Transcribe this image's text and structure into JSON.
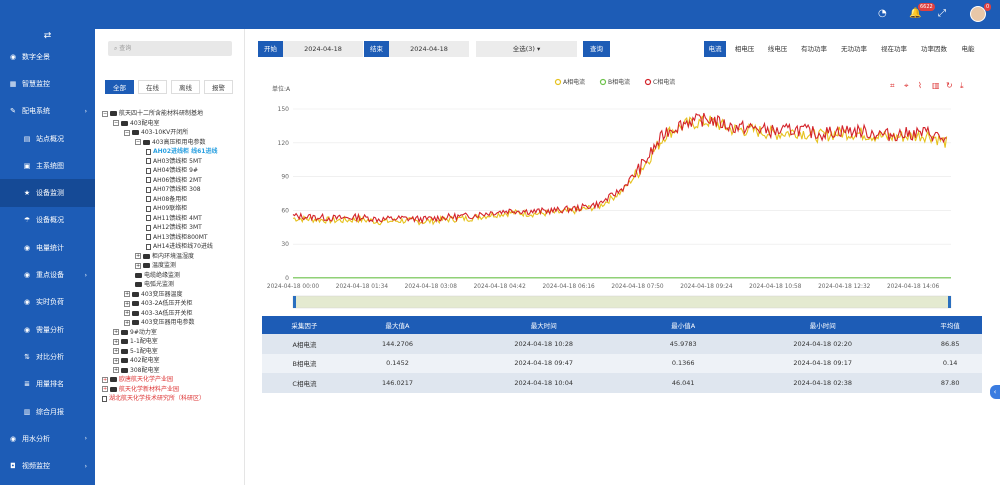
{
  "sidebar": {
    "toggle_icon": "⇄",
    "items": [
      {
        "label": "数字全景",
        "icon": "circle-icon",
        "sub": false,
        "arrow": ""
      },
      {
        "label": "智慧监控",
        "icon": "grid-icon",
        "sub": false,
        "arrow": ""
      },
      {
        "label": "配电系统",
        "icon": "wrench-icon",
        "sub": false,
        "arrow": "›"
      },
      {
        "label": "站点概况",
        "icon": "table-icon",
        "sub": true,
        "arrow": ""
      },
      {
        "label": "主系统图",
        "icon": "image-icon",
        "sub": true,
        "arrow": ""
      },
      {
        "label": "设备监测",
        "icon": "star-icon",
        "sub": true,
        "arrow": "",
        "active": true
      },
      {
        "label": "设备概况",
        "icon": "umbrella-icon",
        "sub": true,
        "arrow": ""
      },
      {
        "label": "电量统计",
        "icon": "circle-icon",
        "sub": true,
        "arrow": ""
      },
      {
        "label": "重点设备",
        "icon": "circle-icon",
        "sub": true,
        "arrow": "›"
      },
      {
        "label": "实时负荷",
        "icon": "circle-icon",
        "sub": true,
        "arrow": ""
      },
      {
        "label": "需量分析",
        "icon": "circle-icon",
        "sub": true,
        "arrow": ""
      },
      {
        "label": "对比分析",
        "icon": "compare-icon",
        "sub": true,
        "arrow": ""
      },
      {
        "label": "用量排名",
        "icon": "list-icon",
        "sub": true,
        "arrow": ""
      },
      {
        "label": "综合月报",
        "icon": "report-icon",
        "sub": true,
        "arrow": ""
      },
      {
        "label": "用水分析",
        "icon": "circle-icon",
        "sub": false,
        "arrow": "›"
      },
      {
        "label": "视频监控",
        "icon": "camera-icon",
        "sub": false,
        "arrow": "›"
      }
    ]
  },
  "topbar": {
    "alarm_count": "6622",
    "user_badge": "0"
  },
  "left": {
    "search_placeholder": "查询",
    "filters": [
      "全部",
      "在线",
      "离线",
      "报警"
    ],
    "tree": [
      {
        "d": 0,
        "t": "bx",
        "s": "−",
        "label": "航天四十二所含能材料研制基地"
      },
      {
        "d": 1,
        "t": "bx",
        "s": "−",
        "label": "403配电室"
      },
      {
        "d": 2,
        "t": "bx",
        "s": "−",
        "label": "403-10KV开闭所"
      },
      {
        "d": 3,
        "t": "bx",
        "s": "−",
        "label": "403高压柜用电参数"
      },
      {
        "d": 4,
        "t": "fl",
        "label": "AH02进线柜 线61进线",
        "hl": true
      },
      {
        "d": 4,
        "t": "fl",
        "label": "AH03馈线柜 5MT"
      },
      {
        "d": 4,
        "t": "fl",
        "label": "AH04馈线柜 9#"
      },
      {
        "d": 4,
        "t": "fl",
        "label": "AH06馈线柜 2MT"
      },
      {
        "d": 4,
        "t": "fl",
        "label": "AH07馈线柜 308"
      },
      {
        "d": 4,
        "t": "fl",
        "label": "AH08备用柜"
      },
      {
        "d": 4,
        "t": "fl",
        "label": "AH09联络柜"
      },
      {
        "d": 4,
        "t": "fl",
        "label": "AH11馈线柜 4MT"
      },
      {
        "d": 4,
        "t": "fl",
        "label": "AH12馈线柜 3MT"
      },
      {
        "d": 4,
        "t": "fl",
        "label": "AH13馈线柜800MT"
      },
      {
        "d": 4,
        "t": "fl",
        "label": "AH14进线柜线70进线"
      },
      {
        "d": 3,
        "t": "bx",
        "s": "+",
        "label": "柜内环境温湿度"
      },
      {
        "d": 3,
        "t": "bx",
        "s": "+",
        "label": "温度监测"
      },
      {
        "d": 3,
        "t": "fd",
        "label": "电缆绝缘监测"
      },
      {
        "d": 3,
        "t": "fd",
        "label": "电弧光监测"
      },
      {
        "d": 2,
        "t": "bx",
        "s": "+",
        "label": "403变压器温度"
      },
      {
        "d": 2,
        "t": "bx",
        "s": "+",
        "label": "403-2A低压开关柜"
      },
      {
        "d": 2,
        "t": "bx",
        "s": "+",
        "label": "403-3A低压开关柜"
      },
      {
        "d": 2,
        "t": "bx",
        "s": "+",
        "label": "403变压器用电参数"
      },
      {
        "d": 1,
        "t": "bx",
        "s": "+",
        "label": "9#动力室"
      },
      {
        "d": 1,
        "t": "bx",
        "s": "+",
        "label": "1-1配电室"
      },
      {
        "d": 1,
        "t": "bx",
        "s": "+",
        "label": "5-1配电室"
      },
      {
        "d": 1,
        "t": "bx",
        "s": "+",
        "label": "402配电室"
      },
      {
        "d": 1,
        "t": "bx",
        "s": "+",
        "label": "308配电室"
      },
      {
        "d": 0,
        "t": "bx",
        "s": "+",
        "label": "欧唐航天化学产业园",
        "red": true
      },
      {
        "d": 0,
        "t": "bx",
        "s": "+",
        "label": "航天化学新材料产业园",
        "red": true
      },
      {
        "d": 0,
        "t": "fl",
        "label": "湖北航天化学技术研究所（科研区）",
        "red": true
      }
    ]
  },
  "toolbar": {
    "start_label": "开始",
    "start_date": "2024-04-18",
    "end_label": "结束",
    "end_date": "2024-04-18",
    "select_label": "全选(3) ▾",
    "query_label": "查询"
  },
  "tabs": [
    "电流",
    "相电压",
    "线电压",
    "有功功率",
    "无功功率",
    "视在功率",
    "功率因数",
    "电能"
  ],
  "colors": {
    "phase_a": "#e6c21e",
    "phase_b": "#6cc24a",
    "phase_c": "#d4232a",
    "primary": "#1d5cb6"
  },
  "chart_data": {
    "type": "line",
    "unit_label": "单位:A",
    "legend": [
      "A相电流",
      "B相电流",
      "C相电流"
    ],
    "y_ticks": [
      "0",
      "30",
      "60",
      "90",
      "120",
      "150"
    ],
    "ylim": [
      0,
      150
    ],
    "x_ticks": [
      "2024-04-18 00:00",
      "2024-04-18 01:34",
      "2024-04-18 03:08",
      "2024-04-18 04:42",
      "2024-04-18 06:16",
      "2024-04-18 07:50",
      "2024-04-18 09:24",
      "2024-04-18 10:58",
      "2024-04-18 12:32",
      "2024-04-18 14:06"
    ],
    "series": [
      {
        "name": "A相电流",
        "x_hours": [
          0,
          0.5,
          1,
          1.5,
          2,
          2.5,
          3,
          3.5,
          4,
          4.5,
          5,
          5.5,
          6,
          6.5,
          7,
          7.5,
          8,
          8.5,
          9,
          9.5,
          10,
          10.5,
          11,
          11.5,
          12,
          12.5,
          13,
          13.5,
          14,
          14.5,
          14.9
        ],
        "values": [
          53,
          52,
          51,
          52,
          50,
          51,
          50,
          52,
          53,
          56,
          58,
          57,
          58,
          60,
          64,
          77,
          100,
          128,
          137,
          139,
          132,
          131,
          128,
          130,
          126,
          129,
          128,
          125,
          126,
          127,
          120
        ]
      },
      {
        "name": "B相电流",
        "x_hours": [
          0,
          15
        ],
        "values": [
          0.15,
          0.15
        ]
      },
      {
        "name": "C相电流",
        "x_hours": [
          0,
          0.5,
          1,
          1.5,
          2,
          2.5,
          3,
          3.5,
          4,
          4.5,
          5,
          5.5,
          6,
          6.5,
          7,
          7.5,
          8,
          8.5,
          9,
          9.5,
          10,
          10.5,
          11,
          11.5,
          12,
          12.5,
          13,
          13.5,
          14,
          14.5,
          14.9
        ],
        "values": [
          55,
          54,
          53,
          54,
          52,
          53,
          52,
          54,
          55,
          58,
          60,
          59,
          60,
          62,
          66,
          79,
          102,
          130,
          139,
          141,
          134,
          133,
          130,
          132,
          128,
          131,
          130,
          127,
          128,
          129,
          122
        ]
      }
    ]
  },
  "table": {
    "headers": [
      "采集因子",
      "最大值A",
      "最大时间",
      "最小值A",
      "最小时间",
      "平均值"
    ],
    "rows": [
      [
        "A相电流",
        "144.2706",
        "2024-04-18 10:28",
        "45.9783",
        "2024-04-18 02:20",
        "86.85"
      ],
      [
        "B相电流",
        "0.1452",
        "2024-04-18 09:47",
        "0.1366",
        "2024-04-18 09:17",
        "0.14"
      ],
      [
        "C相电流",
        "146.0217",
        "2024-04-18 10:04",
        "46.041",
        "2024-04-18 02:38",
        "87.80"
      ]
    ]
  }
}
